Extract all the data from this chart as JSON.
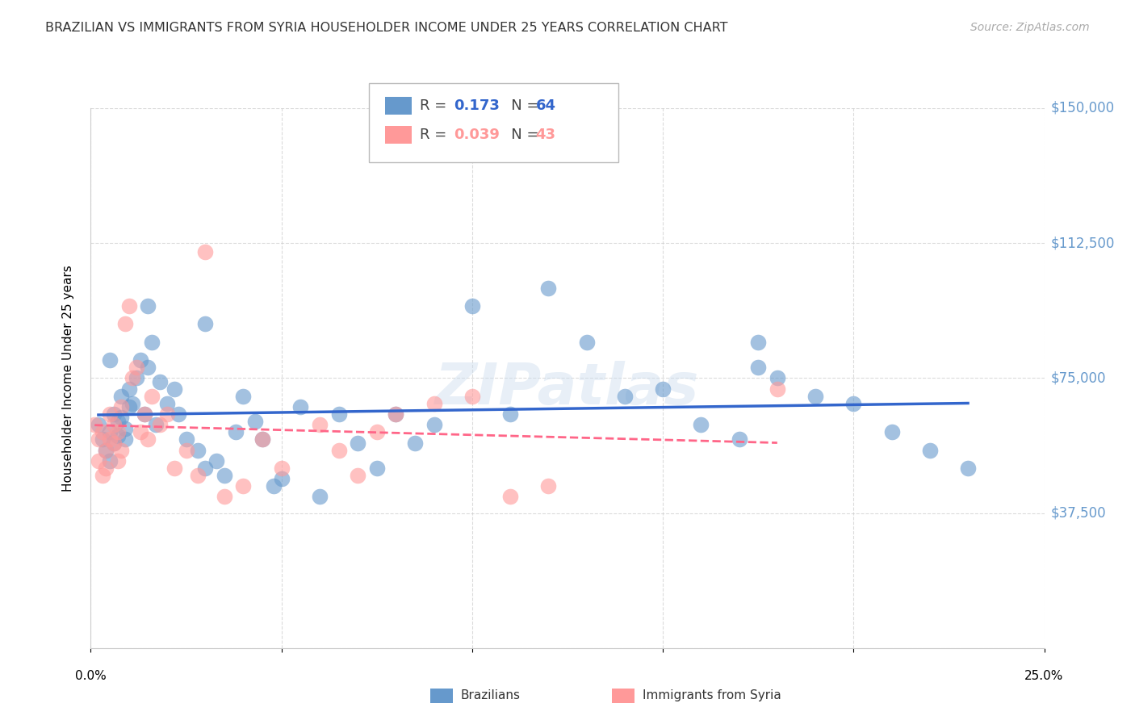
{
  "title": "BRAZILIAN VS IMMIGRANTS FROM SYRIA HOUSEHOLDER INCOME UNDER 25 YEARS CORRELATION CHART",
  "source": "Source: ZipAtlas.com",
  "ylabel": "Householder Income Under 25 years",
  "xlim": [
    0.0,
    0.25
  ],
  "ylim": [
    0,
    150000
  ],
  "yticks": [
    0,
    37500,
    75000,
    112500,
    150000
  ],
  "ytick_labels": [
    "",
    "$37,500",
    "$75,000",
    "$112,500",
    "$150,000"
  ],
  "xticks": [
    0.0,
    0.05,
    0.1,
    0.15,
    0.2,
    0.25
  ],
  "watermark": "ZIPatlas",
  "blue_color": "#6699CC",
  "pink_color": "#FF9999",
  "trendline_blue": "#3366CC",
  "trendline_pink": "#FF6688",
  "axis_color": "#6699CC",
  "title_color": "#333333",
  "grid_color": "#CCCCCC",
  "blue_x": [
    0.002,
    0.003,
    0.004,
    0.005,
    0.005,
    0.006,
    0.006,
    0.007,
    0.007,
    0.008,
    0.008,
    0.009,
    0.009,
    0.01,
    0.01,
    0.011,
    0.012,
    0.013,
    0.014,
    0.015,
    0.016,
    0.017,
    0.018,
    0.02,
    0.022,
    0.023,
    0.025,
    0.028,
    0.03,
    0.033,
    0.035,
    0.038,
    0.04,
    0.043,
    0.045,
    0.048,
    0.05,
    0.055,
    0.06,
    0.065,
    0.07,
    0.075,
    0.08,
    0.085,
    0.09,
    0.1,
    0.11,
    0.12,
    0.13,
    0.14,
    0.15,
    0.16,
    0.17,
    0.175,
    0.18,
    0.19,
    0.2,
    0.21,
    0.22,
    0.23,
    0.175,
    0.015,
    0.03,
    0.005
  ],
  "blue_y": [
    62000,
    58000,
    55000,
    60000,
    52000,
    65000,
    57000,
    63000,
    59000,
    70000,
    64000,
    61000,
    58000,
    67000,
    72000,
    68000,
    75000,
    80000,
    65000,
    78000,
    85000,
    62000,
    74000,
    68000,
    72000,
    65000,
    58000,
    55000,
    50000,
    52000,
    48000,
    60000,
    70000,
    63000,
    58000,
    45000,
    47000,
    67000,
    42000,
    65000,
    57000,
    50000,
    65000,
    57000,
    62000,
    95000,
    65000,
    100000,
    85000,
    70000,
    72000,
    62000,
    58000,
    85000,
    75000,
    70000,
    68000,
    60000,
    55000,
    50000,
    78000,
    95000,
    90000,
    80000
  ],
  "pink_x": [
    0.001,
    0.002,
    0.002,
    0.003,
    0.003,
    0.004,
    0.004,
    0.005,
    0.005,
    0.006,
    0.006,
    0.007,
    0.007,
    0.008,
    0.008,
    0.009,
    0.01,
    0.011,
    0.012,
    0.013,
    0.014,
    0.015,
    0.016,
    0.018,
    0.02,
    0.022,
    0.025,
    0.028,
    0.03,
    0.035,
    0.04,
    0.045,
    0.05,
    0.06,
    0.065,
    0.07,
    0.075,
    0.08,
    0.09,
    0.1,
    0.11,
    0.12,
    0.18
  ],
  "pink_y": [
    62000,
    58000,
    52000,
    60000,
    48000,
    55000,
    50000,
    65000,
    58000,
    62000,
    57000,
    60000,
    52000,
    67000,
    55000,
    90000,
    95000,
    75000,
    78000,
    60000,
    65000,
    58000,
    70000,
    62000,
    65000,
    50000,
    55000,
    48000,
    110000,
    42000,
    45000,
    58000,
    50000,
    62000,
    55000,
    48000,
    60000,
    65000,
    68000,
    70000,
    42000,
    45000,
    72000
  ]
}
